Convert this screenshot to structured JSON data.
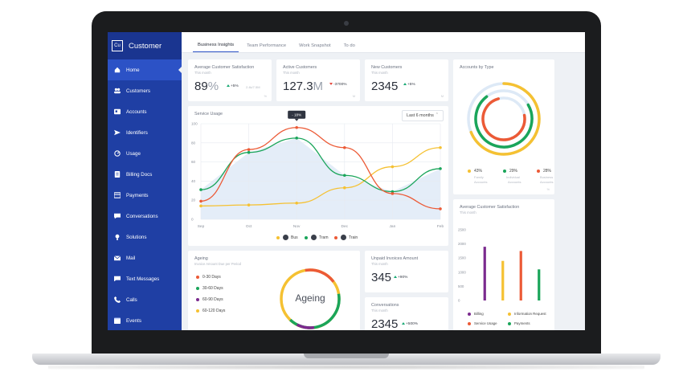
{
  "app": {
    "badge": "Cu",
    "title": "Customer"
  },
  "sidebar": {
    "items": [
      {
        "label": "Home",
        "icon": "home-icon"
      },
      {
        "label": "Customers",
        "icon": "users-icon"
      },
      {
        "label": "Accounts",
        "icon": "id-card-icon"
      },
      {
        "label": "Identifiers",
        "icon": "send-icon"
      },
      {
        "label": "Usage",
        "icon": "gauge-icon"
      },
      {
        "label": "Billing Docs",
        "icon": "document-icon"
      },
      {
        "label": "Payments",
        "icon": "credit-card-icon"
      },
      {
        "label": "Conversations",
        "icon": "chat-icon"
      },
      {
        "label": "Solutions",
        "icon": "lightbulb-icon"
      },
      {
        "label": "Mail",
        "icon": "mail-icon"
      },
      {
        "label": "Text Messages",
        "icon": "message-icon"
      },
      {
        "label": "Calls",
        "icon": "phone-icon"
      },
      {
        "label": "Events",
        "icon": "calendar-icon"
      }
    ],
    "active": "Home"
  },
  "tabs": [
    "Business Insights",
    "Team Performance",
    "Work Snapshot",
    "To do"
  ],
  "kpis": {
    "satisfaction": {
      "title": "Average Customer Satisfaction",
      "sub": "This month",
      "value": "89",
      "unit": "%",
      "delta": "+5%",
      "note": "2.4k/7.5M",
      "corner": "%"
    },
    "active": {
      "title": "Active Customers",
      "sub": "This month",
      "value": "127.3",
      "unit": "M",
      "delta": "-3700%",
      "corner": "M"
    },
    "new": {
      "title": "New Customers",
      "sub": "This month",
      "value": "2345",
      "delta": "+5%",
      "corner": "M"
    }
  },
  "accounts_by_type": {
    "title": "Accounts by Type",
    "items": [
      {
        "pct": "43%",
        "label1": "Family",
        "label2": "Accounts",
        "color": "#f5c132"
      },
      {
        "pct": "29%",
        "label1": "Individual",
        "label2": "Accounts",
        "color": "#1aa55a"
      },
      {
        "pct": "28%",
        "label1": "Business",
        "label2": "Accounts",
        "color": "#ec5a36"
      }
    ],
    "corner": "%"
  },
  "service_usage": {
    "title": "Service Usage",
    "range": "Last 6 months",
    "tooltip": "- 18%",
    "legend": [
      {
        "label": "Bus",
        "color": "#f5c132"
      },
      {
        "label": "Tram",
        "color": "#1aa55a"
      },
      {
        "label": "Train",
        "color": "#ec5a36"
      }
    ]
  },
  "ageing": {
    "title": "Ageing",
    "sub": "Invoice Amount Due per Period",
    "center": "Ageing",
    "items": [
      {
        "label": "0-30 Days",
        "color": "#ec5a36"
      },
      {
        "label": "30-60 Days",
        "color": "#1aa55a"
      },
      {
        "label": "60-90 Days",
        "color": "#7b2a8e"
      },
      {
        "label": "60-120 Days",
        "color": "#f5c132"
      }
    ]
  },
  "unpaid": {
    "title": "Unpaid Invoices Amount",
    "sub": "This month",
    "value": "345",
    "delta": "+90%"
  },
  "conversations": {
    "title": "Conversations",
    "sub": "This month",
    "value": "2345",
    "delta": "+500%"
  },
  "avg_sat_bars": {
    "title": "Average Customer Satisfaction",
    "sub": "This month",
    "legend": [
      {
        "label": "Billing",
        "color": "#7b2a8e"
      },
      {
        "label": "Information Request",
        "color": "#f5c132"
      },
      {
        "label": "Service Usage",
        "color": "#ec5a36"
      },
      {
        "label": "Payments",
        "color": "#1aa55a"
      }
    ]
  },
  "chart_data": [
    {
      "type": "line",
      "title": "Service Usage",
      "x": [
        "Sep",
        "Oct",
        "Nov",
        "Dec",
        "Jan",
        "Feb"
      ],
      "ylim": [
        0,
        100
      ],
      "yticks": [
        "100",
        "80",
        "60",
        "40",
        "20",
        "0"
      ],
      "series": [
        {
          "name": "Bus",
          "color": "#f5c132",
          "values": [
            14,
            15,
            17,
            33,
            55,
            75
          ]
        },
        {
          "name": "Tram",
          "color": "#1aa55a",
          "values": [
            31,
            70,
            85,
            46,
            29,
            53
          ]
        },
        {
          "name": "Train",
          "color": "#ec5a36",
          "values": [
            19,
            73,
            96,
            75,
            27,
            11
          ]
        }
      ],
      "grid": true,
      "legend": "bottom"
    },
    {
      "type": "bar",
      "title": "Average Customer Satisfaction",
      "categories": [
        "Billing",
        "Information Request",
        "Service Usage",
        "Payments"
      ],
      "values": [
        1900,
        1400,
        1750,
        1100
      ],
      "yticks": [
        "2500",
        "2000",
        "1500",
        "1000",
        "500",
        "0"
      ],
      "ylim": [
        0,
        2500
      ],
      "colors": [
        "#7b2a8e",
        "#f5c132",
        "#ec5a36",
        "#1aa55a"
      ]
    }
  ]
}
